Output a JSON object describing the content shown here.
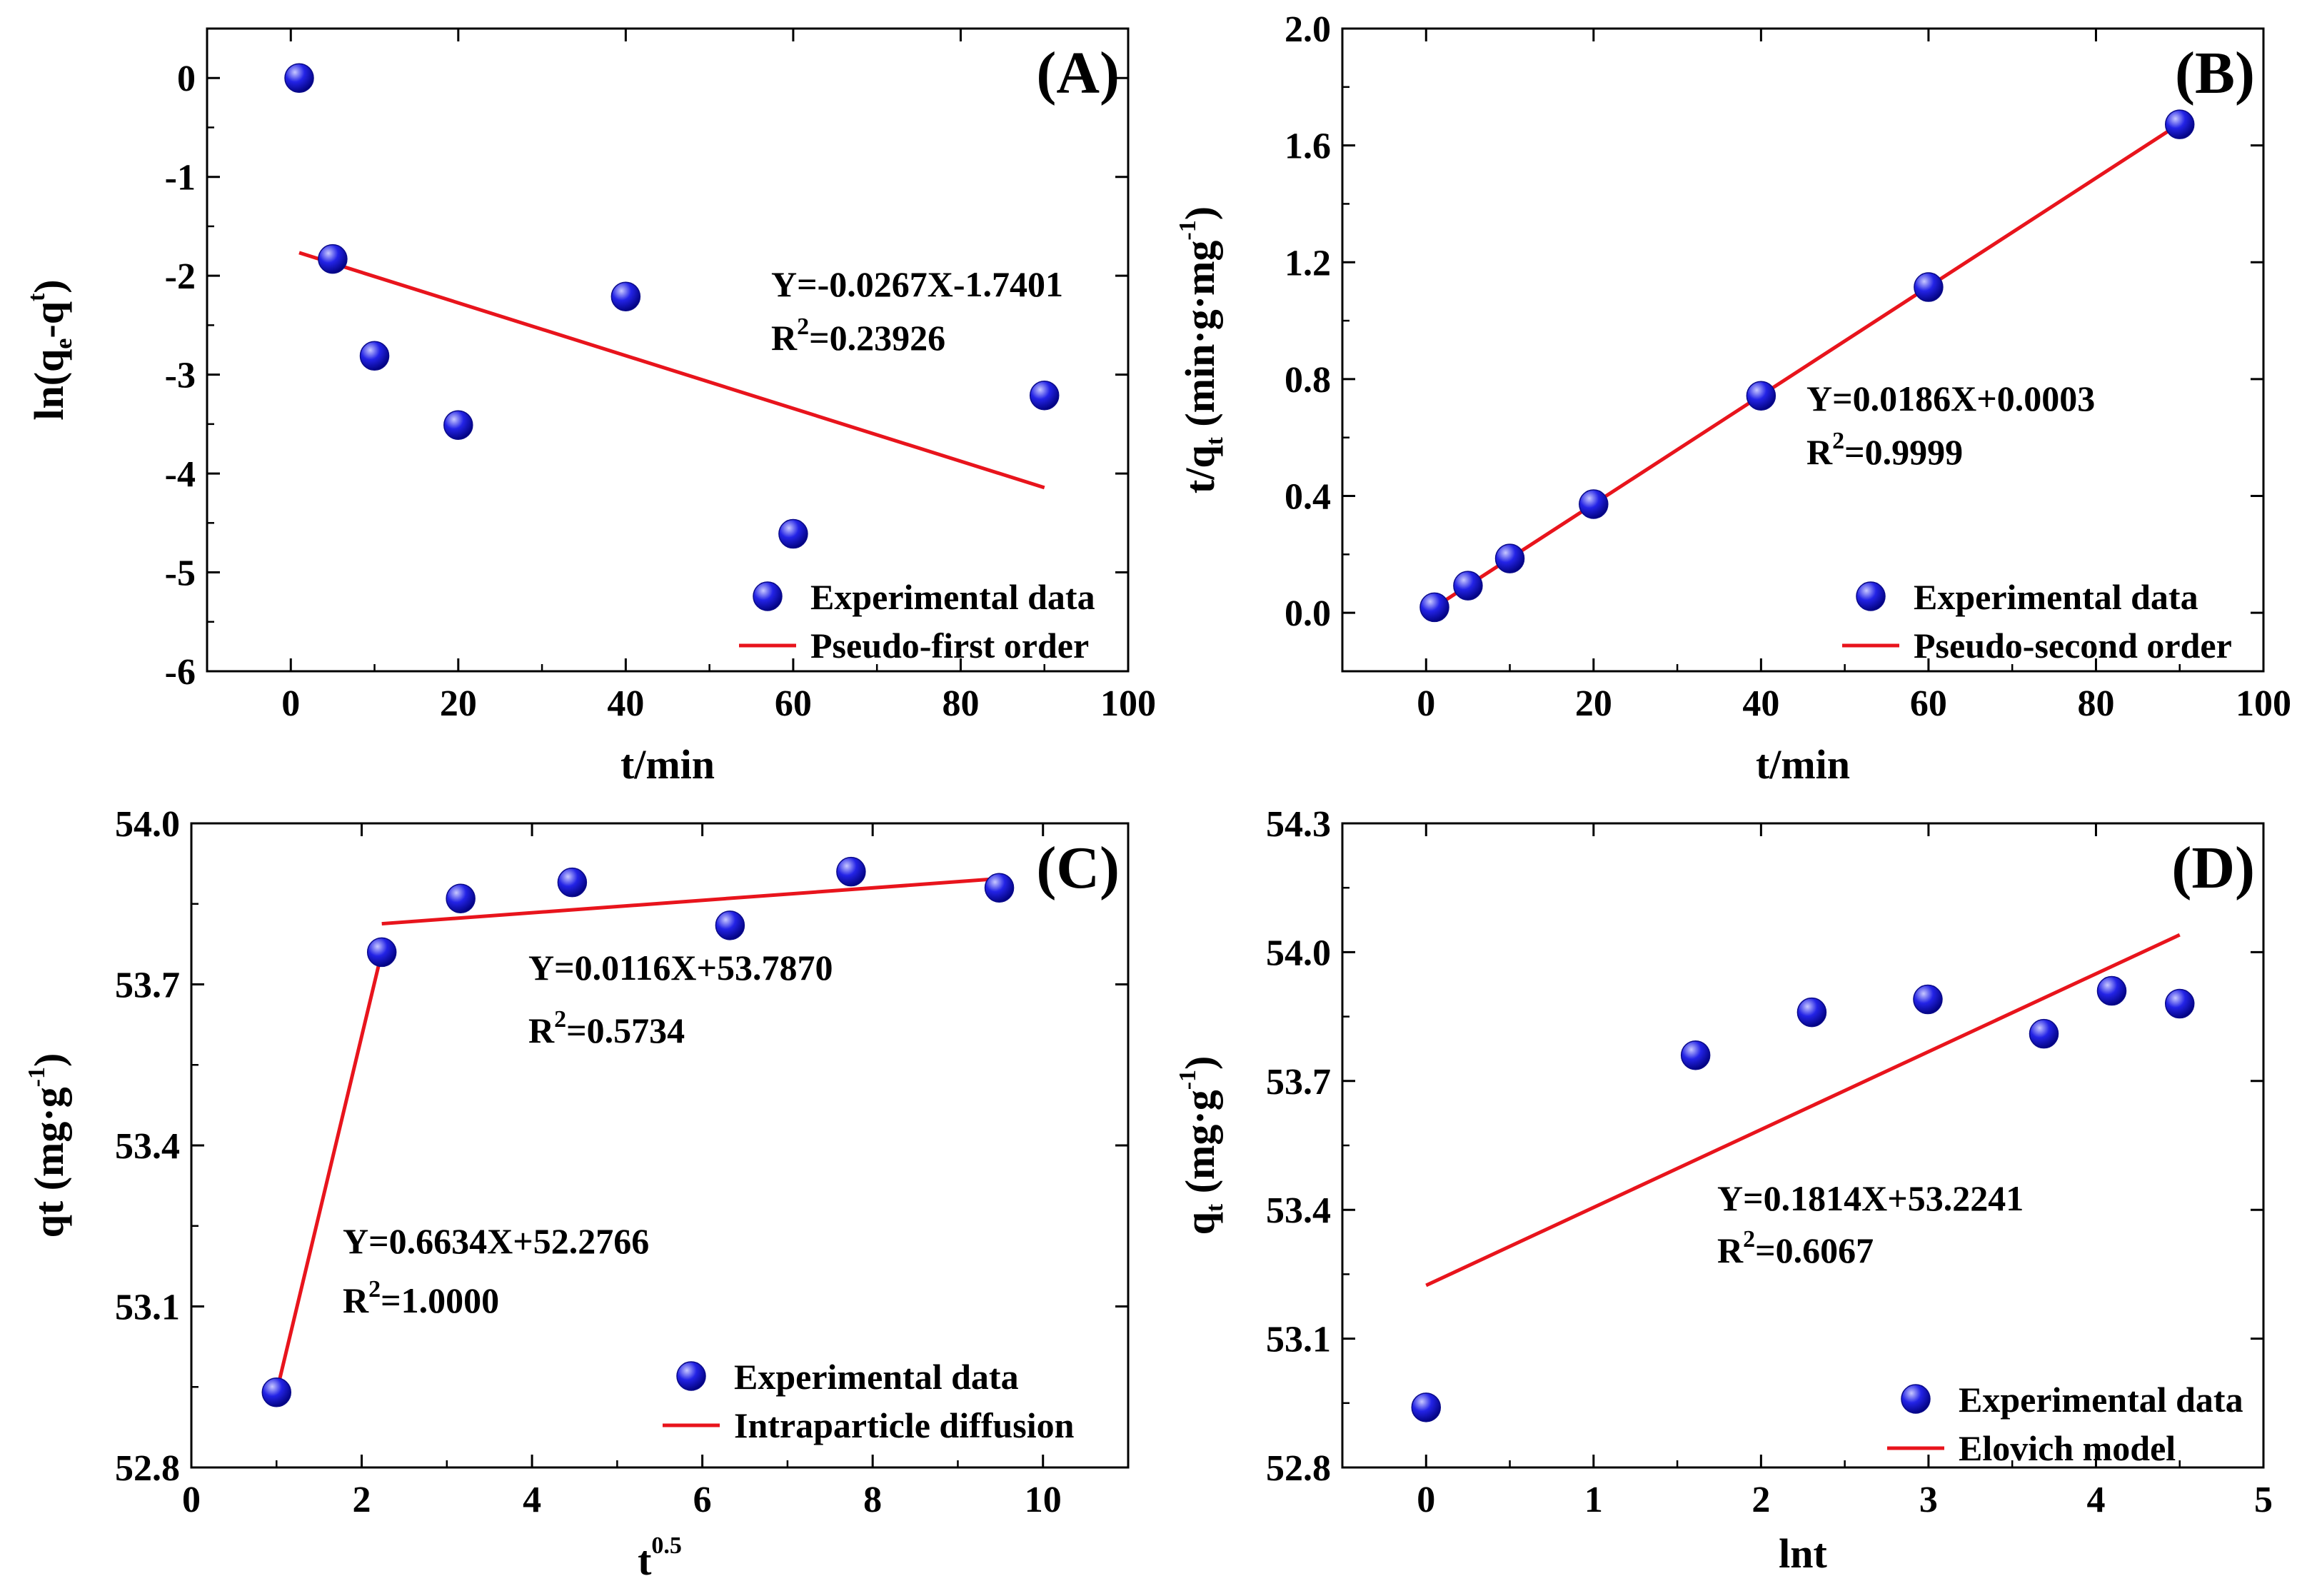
{
  "figure": {
    "colors": {
      "fit_line": "#e8141c",
      "marker_fill": "#2323e6",
      "marker_highlight": "#c8c8ff",
      "axis": "#000000"
    },
    "marker_icon": "sphere-marker-icon"
  },
  "chart_data": [
    {
      "id": "A",
      "type": "scatter",
      "panel_label": "(A)",
      "xlabel": "t/min",
      "ylabel": "ln(qₑ-qₜ)",
      "ylabel_parts": [
        "ln(q",
        "e",
        "-q",
        "t",
        ")"
      ],
      "xlim": [
        -10,
        100
      ],
      "ylim": [
        -6,
        0.5
      ],
      "xticks": [
        0,
        20,
        40,
        60,
        80,
        100
      ],
      "xtick_labels": [
        "0",
        "20",
        "40",
        "60",
        "80",
        "100"
      ],
      "yticks": [
        0,
        -1,
        -2,
        -3,
        -4,
        -5,
        -6
      ],
      "ytick_labels": [
        "0",
        "-1",
        "-2",
        "-3",
        "-4",
        "-5",
        "-6"
      ],
      "series": [
        {
          "name": "Experimental data",
          "kind": "scatter",
          "x": [
            1,
            5,
            10,
            20,
            40,
            60,
            90
          ],
          "y": [
            0.0,
            -1.83,
            -2.81,
            -3.51,
            -2.21,
            -4.61,
            -3.21
          ]
        },
        {
          "name": "Pseudo-first order",
          "kind": "line",
          "x": [
            1,
            90
          ],
          "y": [
            -1.767,
            -4.143
          ]
        }
      ],
      "equation": "Y=-0.0267X-1.7401",
      "r2_value": "=0.23926",
      "legend": "bottom-right"
    },
    {
      "id": "B",
      "type": "scatter",
      "panel_label": "(B)",
      "xlabel": "t/min",
      "ylabel": "t/qₜ (min·g·mg⁻¹)",
      "ylabel_parts": [
        "t/q",
        "t",
        " (min·g·mg",
        "-1",
        ")"
      ],
      "xlim": [
        -10,
        100
      ],
      "ylim": [
        -0.2,
        2.0
      ],
      "xticks": [
        0,
        20,
        40,
        60,
        80,
        100
      ],
      "xtick_labels": [
        "0",
        "20",
        "40",
        "60",
        "80",
        "100"
      ],
      "yticks": [
        0.0,
        0.4,
        0.8,
        1.2,
        1.6,
        2.0
      ],
      "ytick_labels": [
        "0.0",
        "0.4",
        "0.8",
        "1.2",
        "1.6",
        "2.0"
      ],
      "series": [
        {
          "name": "Experimental data",
          "kind": "scatter",
          "x": [
            1,
            5,
            10,
            20,
            40,
            60,
            90
          ],
          "y": [
            0.019,
            0.093,
            0.186,
            0.372,
            0.743,
            1.115,
            1.672
          ]
        },
        {
          "name": "Pseudo-second order",
          "kind": "line",
          "x": [
            1,
            90
          ],
          "y": [
            0.0189,
            1.6743
          ]
        }
      ],
      "equation": "Y=0.0186X+0.0003",
      "r2_value": "=0.9999",
      "legend": "bottom-right"
    },
    {
      "id": "C",
      "type": "scatter",
      "panel_label": "(C)",
      "xlabel": "t",
      "xlabel_sup": "0.5",
      "ylabel": "qt (mg·g⁻¹)",
      "ylabel_parts": [
        "qt (mg·g",
        "-1",
        ")"
      ],
      "xlim": [
        0,
        11
      ],
      "ylim": [
        52.8,
        54.0
      ],
      "xticks": [
        0,
        2,
        4,
        6,
        8,
        10
      ],
      "xtick_labels": [
        "0",
        "2",
        "4",
        "6",
        "8",
        "10"
      ],
      "yticks": [
        52.8,
        53.1,
        53.4,
        53.7,
        54.0
      ],
      "ytick_labels": [
        "52.8",
        "53.1",
        "53.4",
        "53.7",
        "54.0"
      ],
      "series": [
        {
          "name": "Experimental data",
          "kind": "scatter",
          "x": [
            1.0,
            2.236,
            3.162,
            4.472,
            6.325,
            7.746,
            9.487
          ],
          "y": [
            52.94,
            53.76,
            53.86,
            53.89,
            53.81,
            53.91,
            53.88
          ]
        },
        {
          "name": "Intraparticle diffusion",
          "kind": "line",
          "segments": [
            {
              "x": [
                1.0,
                2.236
              ],
              "y": [
                52.94,
                53.76
              ]
            },
            {
              "x": [
                2.236,
                9.487
              ],
              "y": [
                53.813,
                53.897
              ]
            }
          ]
        }
      ],
      "equations": [
        {
          "equation": "Y=0.0116X+53.7870",
          "r2_value": "=0.5734"
        },
        {
          "equation": "Y=0.6634X+52.2766",
          "r2_value": "=1.0000"
        }
      ],
      "legend": "bottom-right"
    },
    {
      "id": "D",
      "type": "scatter",
      "panel_label": "(D)",
      "xlabel": "lnt",
      "ylabel": "qₜ (mg·g⁻¹)",
      "ylabel_parts": [
        "q",
        "t",
        " (mg·g",
        "-1",
        ")"
      ],
      "xlim": [
        -0.5,
        5
      ],
      "ylim": [
        52.8,
        54.3
      ],
      "xticks": [
        0,
        1,
        2,
        3,
        4,
        5
      ],
      "xtick_labels": [
        "0",
        "1",
        "2",
        "3",
        "4",
        "5"
      ],
      "yticks": [
        52.8,
        53.1,
        53.4,
        53.7,
        54.0,
        54.3
      ],
      "ytick_labels": [
        "52.8",
        "53.1",
        "53.4",
        "53.7",
        "54.0",
        "54.3"
      ],
      "series": [
        {
          "name": "Experimental data",
          "kind": "scatter",
          "x": [
            0,
            1.609,
            2.303,
            2.996,
            3.689,
            4.094,
            4.5
          ],
          "y": [
            52.94,
            53.76,
            53.86,
            53.89,
            53.81,
            53.91,
            53.88
          ]
        },
        {
          "name": "Elovich model",
          "kind": "line",
          "x": [
            0,
            4.5
          ],
          "y": [
            53.2241,
            54.0404
          ]
        }
      ],
      "equation": "Y=0.1814X+53.2241",
      "r2_value": "=0.6067",
      "legend": "bottom-right"
    }
  ]
}
